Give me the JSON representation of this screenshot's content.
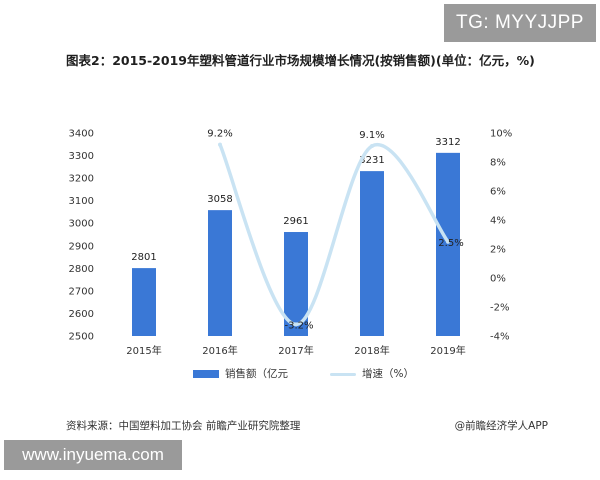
{
  "overlays": {
    "top_right": "TG: MYYJJPP",
    "bottom_left": "www.inyuema.com"
  },
  "title": "图表2：2015-2019年塑料管道行业市场规模增长情况(按销售额)(单位：亿元，%)",
  "chart_data": {
    "type": "bar",
    "categories": [
      "2015年",
      "2016年",
      "2017年",
      "2018年",
      "2019年"
    ],
    "series": [
      {
        "name": "销售额（亿元",
        "type": "bar",
        "axis": "left",
        "color": "#3a78d6",
        "values": [
          2801,
          3058,
          2961,
          3231,
          3312
        ],
        "labels": [
          "2801",
          "3058",
          "2961",
          "3231",
          "3312"
        ]
      },
      {
        "name": "增速（%）",
        "type": "line",
        "axis": "right",
        "color": "#c9e3f3",
        "smooth": true,
        "values": [
          null,
          9.2,
          -3.2,
          9.1,
          2.5
        ],
        "labels": [
          "",
          "9.2%",
          "-3.2%",
          "9.1%",
          "2.5%"
        ]
      }
    ],
    "y_left": {
      "ylim": [
        2500,
        3400
      ],
      "ticks": [
        "2500",
        "2600",
        "2700",
        "2800",
        "2900",
        "3000",
        "3100",
        "3200",
        "3300",
        "3400"
      ]
    },
    "y_right": {
      "ylim": [
        -4,
        10
      ],
      "ticks": [
        "-4%",
        "-2%",
        "0%",
        "2%",
        "4%",
        "6%",
        "8%",
        "10%"
      ]
    },
    "grid": false,
    "legend_position": "bottom"
  },
  "legend": {
    "bar_label": "销售额（亿元",
    "line_label": "增速（%）"
  },
  "footer": {
    "source": "资料来源：中国塑料加工协会 前瞻产业研究院整理",
    "brand": "@前瞻经济学人APP"
  }
}
